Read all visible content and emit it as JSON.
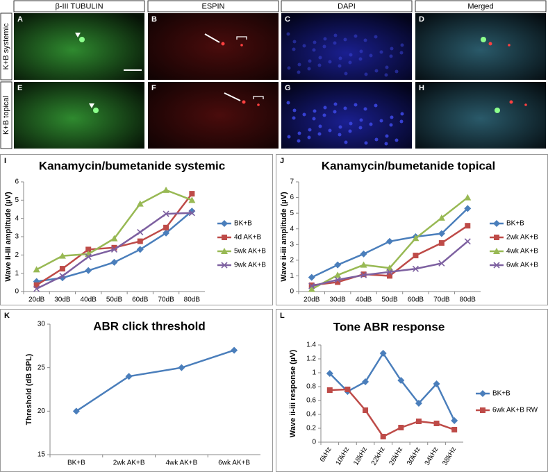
{
  "figure": {
    "columns": [
      "β-III TUBULIN",
      "ESPIN",
      "DAPI",
      "Merged"
    ],
    "rows": [
      "K+B systemic",
      "K+B topical"
    ],
    "image_letters": [
      "A",
      "B",
      "C",
      "D",
      "E",
      "F",
      "G",
      "H"
    ]
  },
  "chart_data": [
    {
      "type": "line",
      "panel": "I",
      "title": "Kanamycin/bumetanide systemic",
      "y_label": "Wave ii-iii amplitude (µV)",
      "categories": [
        "20dB",
        "30dB",
        "40dB",
        "50dB",
        "60dB",
        "70dB",
        "80dB"
      ],
      "ylim": [
        0,
        6
      ],
      "yticks": [
        0,
        1,
        2,
        3,
        4,
        5,
        6
      ],
      "legend": "right",
      "series": [
        {
          "name": "BK+B",
          "color": "#4a7ebb",
          "marker": "diamond",
          "values": [
            0.55,
            0.75,
            1.15,
            1.6,
            2.3,
            3.2,
            4.4
          ]
        },
        {
          "name": "4d AK+B",
          "color": "#be4b48",
          "marker": "square",
          "values": [
            0.35,
            1.25,
            2.3,
            2.4,
            2.75,
            3.5,
            5.35
          ]
        },
        {
          "name": "5wk AK+B",
          "color": "#98b954",
          "marker": "triangle",
          "values": [
            1.2,
            1.95,
            2.05,
            2.9,
            4.8,
            5.55,
            5.0
          ]
        },
        {
          "name": "9wk AK+B",
          "color": "#7d60a0",
          "marker": "x",
          "values": [
            0.15,
            0.85,
            1.9,
            2.3,
            3.25,
            4.25,
            4.3
          ]
        }
      ]
    },
    {
      "type": "line",
      "panel": "J",
      "title": "Kanamycin/bumetanide topical",
      "y_label": "Wave ii-iii amplitude (µV)",
      "categories": [
        "20dB",
        "30dB",
        "40dB",
        "50dB",
        "60dB",
        "70dB",
        "80dB"
      ],
      "ylim": [
        0,
        7
      ],
      "yticks": [
        0,
        1,
        2,
        3,
        4,
        5,
        6,
        7
      ],
      "legend": "right",
      "series": [
        {
          "name": "BK+B",
          "color": "#4a7ebb",
          "marker": "diamond",
          "values": [
            0.9,
            1.7,
            2.4,
            3.2,
            3.5,
            3.7,
            5.3
          ]
        },
        {
          "name": "2wk AK+B",
          "color": "#be4b48",
          "marker": "square",
          "values": [
            0.4,
            0.6,
            1.1,
            1.0,
            2.3,
            3.1,
            4.2
          ]
        },
        {
          "name": "4wk AK+B",
          "color": "#98b954",
          "marker": "triangle",
          "values": [
            0.15,
            1.05,
            1.7,
            1.5,
            3.4,
            4.7,
            6.0
          ]
        },
        {
          "name": "6wk AK+B",
          "color": "#7d60a0",
          "marker": "x",
          "values": [
            0.35,
            0.75,
            1.05,
            1.25,
            1.45,
            1.8,
            3.2
          ]
        }
      ]
    },
    {
      "type": "line",
      "panel": "K",
      "title": "ABR click threshold",
      "y_label": "Threshold (dB SPL)",
      "categories": [
        "BK+B",
        "2wk AK+B",
        "4wk AK+B",
        "6wk AK+B"
      ],
      "ylim": [
        15,
        30
      ],
      "yticks": [
        15,
        20,
        25,
        30
      ],
      "series": [
        {
          "color": "#4a7ebb",
          "marker": "diamond",
          "values": [
            20,
            24,
            25,
            27
          ]
        }
      ]
    },
    {
      "type": "line",
      "panel": "L",
      "title": "Tone ABR response",
      "y_label": "Wave ii-iii response (µV)",
      "categories": [
        "6kHz",
        "10kHz",
        "18kHz",
        "22kHz",
        "26kHz",
        "30kHz",
        "34kHz",
        "38kHz"
      ],
      "ylim": [
        0,
        1.4
      ],
      "yticks": [
        0,
        0.2,
        0.4,
        0.6,
        0.8,
        1,
        1.2,
        1.4
      ],
      "legend": "right",
      "series": [
        {
          "name": "BK+B",
          "color": "#4a7ebb",
          "marker": "diamond",
          "values": [
            0.99,
            0.73,
            0.87,
            1.28,
            0.89,
            0.56,
            0.84,
            0.31
          ]
        },
        {
          "name": "6wk AK+B RW",
          "color": "#be4b48",
          "marker": "square",
          "values": [
            0.75,
            0.76,
            0.46,
            0.08,
            0.21,
            0.3,
            0.27,
            0.18
          ]
        }
      ]
    }
  ]
}
